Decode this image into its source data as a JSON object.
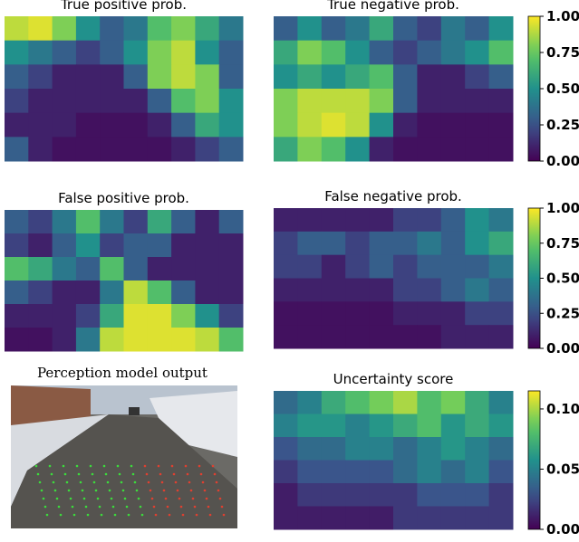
{
  "chart_data": [
    {
      "type": "heatmap",
      "title": "True positive prob.",
      "colormap": "viridis",
      "zlim": [
        0,
        1
      ],
      "values": [
        [
          0.9,
          0.95,
          0.8,
          0.5,
          0.3,
          0.4,
          0.7,
          0.8,
          0.6,
          0.4
        ],
        [
          0.5,
          0.4,
          0.3,
          0.2,
          0.3,
          0.5,
          0.8,
          0.9,
          0.5,
          0.3
        ],
        [
          0.3,
          0.2,
          0.1,
          0.1,
          0.1,
          0.3,
          0.8,
          0.9,
          0.8,
          0.3
        ],
        [
          0.2,
          0.1,
          0.1,
          0.1,
          0.1,
          0.1,
          0.3,
          0.7,
          0.8,
          0.5
        ],
        [
          0.1,
          0.1,
          0.1,
          0.05,
          0.05,
          0.05,
          0.1,
          0.3,
          0.6,
          0.5
        ],
        [
          0.3,
          0.1,
          0.05,
          0.05,
          0.05,
          0.05,
          0.05,
          0.1,
          0.2,
          0.3
        ]
      ]
    },
    {
      "type": "heatmap",
      "title": "True negative prob.",
      "colormap": "viridis",
      "zlim": [
        0,
        1
      ],
      "zticks": [
        {
          "value": 0,
          "label": "0.00"
        },
        {
          "value": 0.25,
          "label": "0.25"
        },
        {
          "value": 0.5,
          "label": "0.50"
        },
        {
          "value": 0.75,
          "label": "0.75"
        },
        {
          "value": 1,
          "label": "1.00"
        }
      ],
      "values": [
        [
          0.3,
          0.5,
          0.3,
          0.4,
          0.6,
          0.3,
          0.2,
          0.4,
          0.3,
          0.5
        ],
        [
          0.6,
          0.8,
          0.7,
          0.5,
          0.3,
          0.2,
          0.3,
          0.4,
          0.5,
          0.7
        ],
        [
          0.5,
          0.6,
          0.5,
          0.6,
          0.7,
          0.3,
          0.1,
          0.1,
          0.2,
          0.3
        ],
        [
          0.8,
          0.9,
          0.9,
          0.9,
          0.8,
          0.3,
          0.1,
          0.1,
          0.1,
          0.1
        ],
        [
          0.8,
          0.9,
          0.95,
          0.9,
          0.5,
          0.1,
          0.05,
          0.05,
          0.05,
          0.05
        ],
        [
          0.6,
          0.8,
          0.7,
          0.5,
          0.1,
          0.05,
          0.05,
          0.05,
          0.05,
          0.05
        ]
      ]
    },
    {
      "type": "heatmap",
      "title": "False positive prob.",
      "colormap": "viridis",
      "zlim": [
        0,
        1
      ],
      "values": [
        [
          0.3,
          0.2,
          0.4,
          0.7,
          0.4,
          0.2,
          0.6,
          0.3,
          0.1,
          0.3
        ],
        [
          0.2,
          0.1,
          0.3,
          0.5,
          0.2,
          0.3,
          0.3,
          0.1,
          0.1,
          0.1
        ],
        [
          0.7,
          0.6,
          0.4,
          0.3,
          0.7,
          0.3,
          0.1,
          0.1,
          0.1,
          0.1
        ],
        [
          0.3,
          0.2,
          0.1,
          0.1,
          0.4,
          0.9,
          0.7,
          0.3,
          0.1,
          0.1
        ],
        [
          0.1,
          0.1,
          0.1,
          0.2,
          0.6,
          0.95,
          0.95,
          0.8,
          0.5,
          0.2
        ],
        [
          0.05,
          0.05,
          0.1,
          0.4,
          0.9,
          0.95,
          0.95,
          0.95,
          0.9,
          0.7
        ]
      ]
    },
    {
      "type": "heatmap",
      "title": "False negative prob.",
      "colormap": "viridis",
      "zlim": [
        0,
        1
      ],
      "zticks": [
        {
          "value": 0,
          "label": "0.00"
        },
        {
          "value": 0.25,
          "label": "0.25"
        },
        {
          "value": 0.5,
          "label": "0.50"
        },
        {
          "value": 0.75,
          "label": "0.75"
        },
        {
          "value": 1,
          "label": "1.00"
        }
      ],
      "values": [
        [
          0.1,
          0.1,
          0.1,
          0.1,
          0.1,
          0.2,
          0.2,
          0.3,
          0.5,
          0.4
        ],
        [
          0.2,
          0.3,
          0.3,
          0.2,
          0.3,
          0.3,
          0.4,
          0.3,
          0.5,
          0.6
        ],
        [
          0.2,
          0.2,
          0.1,
          0.2,
          0.3,
          0.2,
          0.3,
          0.3,
          0.3,
          0.4
        ],
        [
          0.1,
          0.1,
          0.1,
          0.1,
          0.1,
          0.2,
          0.2,
          0.3,
          0.4,
          0.3
        ],
        [
          0.05,
          0.05,
          0.05,
          0.05,
          0.05,
          0.1,
          0.1,
          0.1,
          0.2,
          0.2
        ],
        [
          0.05,
          0.05,
          0.05,
          0.05,
          0.05,
          0.05,
          0.05,
          0.1,
          0.1,
          0.1
        ]
      ]
    },
    {
      "type": "heatmap",
      "title": "Uncertainty score",
      "colormap": "viridis",
      "zlim": [
        0,
        0.115
      ],
      "zticks": [
        {
          "value": 0,
          "label": "0.00"
        },
        {
          "value": 0.05,
          "label": "0.05"
        },
        {
          "value": 0.1,
          "label": "0.10"
        }
      ],
      "values": [
        [
          0.04,
          0.05,
          0.07,
          0.08,
          0.09,
          0.1,
          0.08,
          0.09,
          0.07,
          0.05
        ],
        [
          0.05,
          0.06,
          0.06,
          0.05,
          0.06,
          0.07,
          0.08,
          0.06,
          0.07,
          0.06
        ],
        [
          0.03,
          0.04,
          0.04,
          0.05,
          0.05,
          0.04,
          0.05,
          0.06,
          0.05,
          0.04
        ],
        [
          0.02,
          0.03,
          0.03,
          0.03,
          0.03,
          0.04,
          0.05,
          0.04,
          0.05,
          0.03
        ],
        [
          0.01,
          0.02,
          0.02,
          0.02,
          0.02,
          0.02,
          0.03,
          0.03,
          0.03,
          0.02
        ],
        [
          0.01,
          0.01,
          0.01,
          0.01,
          0.01,
          0.02,
          0.02,
          0.02,
          0.02,
          0.02
        ]
      ]
    }
  ],
  "image": {
    "title": "Perception model output"
  }
}
